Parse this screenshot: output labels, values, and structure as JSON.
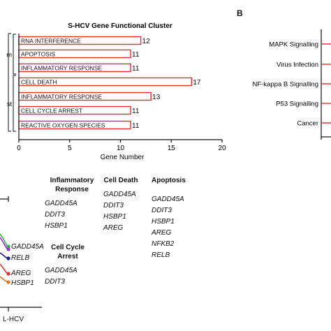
{
  "panel_b_label": "B",
  "chart_data": [
    {
      "type": "bar",
      "orientation": "horizontal",
      "title": "S-HCV Gene Functional Cluster",
      "xlabel": "Gene Number",
      "xlim": [
        0,
        20
      ],
      "xticks": [
        0,
        5,
        10,
        15,
        20
      ],
      "groups": [
        {
          "name": "m",
          "categories": [
            "RNA INTERFERENCE",
            "APOPTOSIS",
            "INFLAMMATORY RESPONSE"
          ],
          "values": [
            12,
            11,
            11
          ]
        },
        {
          "name": "st",
          "categories": [
            "CELL DEATH",
            "INFLAMMATORY RESPONSE",
            "CELL CYCLE ARREST",
            "REACTIVE OXYGEN SPECIES"
          ],
          "values": [
            17,
            13,
            11,
            11
          ]
        }
      ],
      "bar_color": "#e0312f"
    },
    {
      "type": "bar",
      "orientation": "horizontal",
      "categories": [
        "MAPK Signalling",
        "Virus Infection",
        "NF-kappa B Signalling",
        "P53 Signalling",
        "Cancer"
      ],
      "bar_color": "#e0312f"
    }
  ],
  "gene_lists": [
    {
      "heading": "Inflammatory Response",
      "genes": [
        "GADD45A",
        "DDIT3",
        "HSBP1"
      ]
    },
    {
      "heading": "Cell Death",
      "genes": [
        "GADD45A",
        "DDIT3",
        "HSBP1",
        "AREG"
      ]
    },
    {
      "heading": "Apoptosis",
      "genes": [
        "GADD45A",
        "DDIT3",
        "HSBP1",
        "AREG",
        "NFKB2",
        "RELB"
      ]
    },
    {
      "heading": "Cell Cycle Arrest",
      "genes": [
        "GADD45A",
        "DDIT3"
      ]
    }
  ],
  "line_plot_labels": [
    "GADD45A",
    "RELB",
    "AREG",
    "HSBP1"
  ],
  "line_colors": [
    "#2db34a",
    "#9b30d9",
    "#1a1a8c",
    "#e0312f",
    "#e07a1a"
  ],
  "bottom_axis_label": "L-HCV"
}
